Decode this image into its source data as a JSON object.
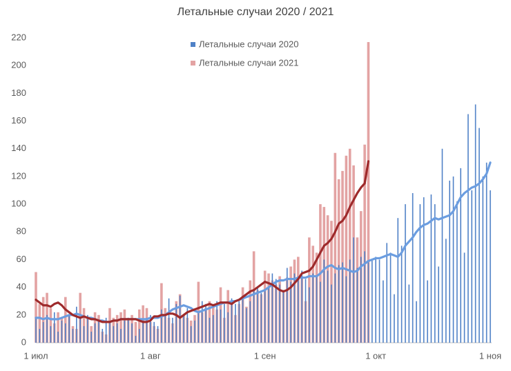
{
  "chart_data": {
    "type": "bar",
    "title": "Летальные случаи 2020 / 2021",
    "categories": [
      "1 июл",
      null,
      null,
      null,
      null,
      null,
      null,
      null,
      null,
      null,
      null,
      null,
      null,
      null,
      null,
      null,
      null,
      null,
      null,
      null,
      null,
      null,
      null,
      null,
      null,
      null,
      null,
      null,
      null,
      null,
      null,
      "1 авг",
      null,
      null,
      null,
      null,
      null,
      null,
      null,
      null,
      null,
      null,
      null,
      null,
      null,
      null,
      null,
      null,
      null,
      null,
      null,
      null,
      null,
      null,
      null,
      null,
      null,
      null,
      null,
      null,
      null,
      null,
      "1 сен",
      null,
      null,
      null,
      null,
      null,
      null,
      null,
      null,
      null,
      null,
      null,
      null,
      null,
      null,
      null,
      null,
      null,
      null,
      null,
      null,
      null,
      null,
      null,
      null,
      null,
      null,
      null,
      null,
      null,
      "1 окт",
      null,
      null,
      null,
      null,
      null,
      null,
      null,
      null,
      null,
      null,
      null,
      null,
      null,
      null,
      null,
      null,
      null,
      null,
      null,
      null,
      null,
      null,
      null,
      null,
      null,
      null,
      null,
      null,
      null,
      null,
      "1 ноя"
    ],
    "series": [
      {
        "name": "Летальные случаи 2021",
        "color": "#e3a3a3",
        "kind": "bar",
        "values": [
          51,
          28,
          33,
          36,
          25,
          14,
          22,
          18,
          33,
          20,
          12,
          10,
          36,
          25,
          18,
          12,
          22,
          20,
          8,
          6,
          25,
          18,
          20,
          22,
          24,
          18,
          20,
          15,
          24,
          27,
          25,
          15,
          12,
          10,
          43,
          25,
          18,
          14,
          30,
          35,
          20,
          18,
          16,
          20,
          44,
          22,
          25,
          30,
          28,
          24,
          40,
          18,
          38,
          30,
          20,
          28,
          40,
          26,
          45,
          66,
          38,
          35,
          52,
          50,
          45,
          42,
          48,
          38,
          47,
          55,
          60,
          62,
          48,
          30,
          76,
          70,
          65,
          100,
          98,
          92,
          88,
          137,
          118,
          124,
          135,
          140,
          128,
          76,
          95,
          143,
          217,
          null,
          null,
          null,
          null,
          null,
          null,
          null,
          null,
          null,
          null,
          null,
          null,
          null,
          null,
          null,
          null,
          null,
          null,
          null,
          null,
          null,
          null,
          null,
          null,
          null,
          null,
          null,
          null,
          null,
          null,
          null,
          null,
          null
        ]
      },
      {
        "name": "Летальные случаи 2020",
        "color": "#4f81c7",
        "kind": "bar",
        "values": [
          18,
          10,
          15,
          20,
          12,
          22,
          8,
          16,
          14,
          20,
          10,
          26,
          18,
          12,
          20,
          8,
          14,
          16,
          10,
          18,
          15,
          12,
          14,
          10,
          16,
          18,
          14,
          5,
          10,
          16,
          18,
          20,
          15,
          12,
          24,
          20,
          32,
          18,
          28,
          34,
          20,
          25,
          12,
          16,
          22,
          30,
          28,
          18,
          20,
          30,
          24,
          28,
          22,
          32,
          28,
          30,
          34,
          25,
          30,
          38,
          40,
          36,
          38,
          40,
          50,
          46,
          42,
          38,
          54,
          44,
          50,
          48,
          52,
          46,
          40,
          50,
          48,
          44,
          60,
          52,
          42,
          50,
          56,
          58,
          48,
          60,
          76,
          54,
          62,
          66,
          58,
          60,
          62,
          60,
          45,
          72,
          65,
          35,
          90,
          70,
          100,
          42,
          108,
          30,
          100,
          105,
          45,
          107,
          100,
          55,
          140,
          75,
          117,
          120,
          102,
          126,
          65,
          165,
          110,
          172,
          155,
          120,
          130,
          110
        ]
      },
      {
        "color": "#6b9de0",
        "kind": "line",
        "values": [
          18,
          18,
          17,
          18,
          17,
          17,
          17,
          18,
          19,
          20,
          20,
          21,
          20,
          19,
          18,
          18,
          17,
          16,
          16,
          15,
          15,
          16,
          16,
          17,
          17,
          17,
          17,
          17,
          17,
          17,
          17,
          18,
          18,
          18,
          19,
          20,
          22,
          24,
          25,
          26,
          27,
          26,
          25,
          23,
          22,
          23,
          24,
          25,
          26,
          27,
          28,
          29,
          29,
          30,
          30,
          31,
          32,
          33,
          34,
          35,
          36,
          37,
          38,
          40,
          42,
          44,
          45,
          45,
          46,
          46,
          46,
          47,
          47,
          47,
          48,
          48,
          48,
          50,
          53,
          55,
          56,
          54,
          53,
          54,
          53,
          52,
          51,
          52,
          55,
          57,
          59,
          60,
          61,
          61,
          62,
          63,
          64,
          63,
          62,
          65,
          70,
          73,
          76,
          80,
          83,
          85,
          86,
          88,
          90,
          89,
          90,
          91,
          92,
          95,
          100,
          105,
          108,
          110,
          112,
          113,
          115,
          118,
          122,
          130
        ]
      },
      {
        "color": "#9e2a2b",
        "kind": "line",
        "values": [
          31,
          29,
          27,
          27,
          26,
          28,
          29,
          27,
          24,
          22,
          20,
          19,
          18,
          19,
          18,
          17,
          17,
          16,
          15,
          15,
          15,
          16,
          16,
          17,
          17,
          17,
          17,
          17,
          16,
          15,
          15,
          16,
          19,
          19,
          20,
          20,
          21,
          21,
          20,
          18,
          20,
          22,
          23,
          24,
          25,
          26,
          27,
          28,
          27,
          28,
          29,
          29,
          29,
          28,
          30,
          31,
          33,
          35,
          37,
          38,
          40,
          42,
          44,
          43,
          42,
          40,
          38,
          37,
          38,
          40,
          43,
          46,
          50,
          51,
          52,
          55,
          60,
          65,
          70,
          72,
          75,
          80,
          86,
          88,
          92,
          98,
          103,
          108,
          112,
          115,
          131,
          null,
          null,
          null,
          null,
          null,
          null,
          null,
          null,
          null,
          null,
          null,
          null,
          null,
          null,
          null,
          null,
          null,
          null,
          null,
          null,
          null,
          null,
          null,
          null,
          null,
          null,
          null,
          null,
          null,
          null,
          null,
          null,
          null
        ]
      }
    ],
    "ylim": [
      0,
      220
    ],
    "yticks": [
      0,
      20,
      40,
      60,
      80,
      100,
      120,
      140,
      160,
      180,
      200,
      220
    ],
    "grid": false,
    "legend": "top"
  }
}
